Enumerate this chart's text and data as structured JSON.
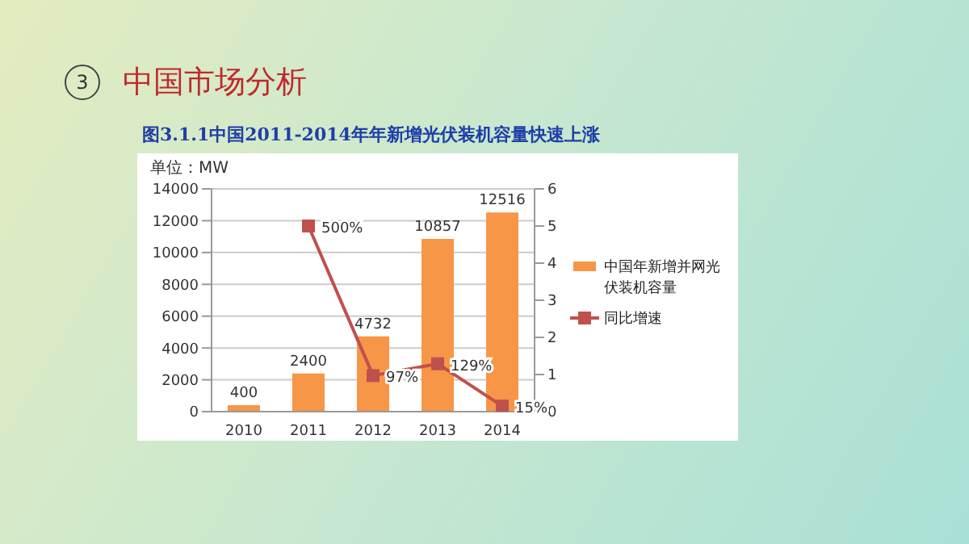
{
  "chart_data": {
    "type": "bar",
    "title": "中国市场分析",
    "subtitle": "图3.1.1中国2011-2014年年新增光伏装机容量快速上涨",
    "ylabel": "单位：MW",
    "annotations": [
      "3"
    ],
    "categories": [
      "2010",
      "2011",
      "2012",
      "2013",
      "2014"
    ],
    "series": [
      {
        "name": "中国年新增并网光伏装机容量",
        "color": "#f79646",
        "values": [
          400,
          2400,
          4732,
          10857,
          12516
        ],
        "value_labels": [
          "400",
          "2400",
          "4732",
          "10857",
          "12516"
        ]
      },
      {
        "name": "同比增速",
        "type": "line",
        "axis": "y2",
        "color": "#c0504d",
        "marker": "square",
        "values": [
          null,
          5,
          0.97,
          1.29,
          0.15
        ],
        "value_labels": [
          null,
          "500%",
          "97%",
          "129%",
          "15%"
        ]
      }
    ],
    "ylim": [
      0,
      14000
    ],
    "yticks": [
      0,
      2000,
      4000,
      6000,
      8000,
      10000,
      12000,
      14000
    ],
    "y2lim": [
      0,
      6
    ],
    "y2ticks": [
      0,
      1,
      2,
      3,
      4,
      5,
      6
    ],
    "grid": "y",
    "legend": "right"
  }
}
